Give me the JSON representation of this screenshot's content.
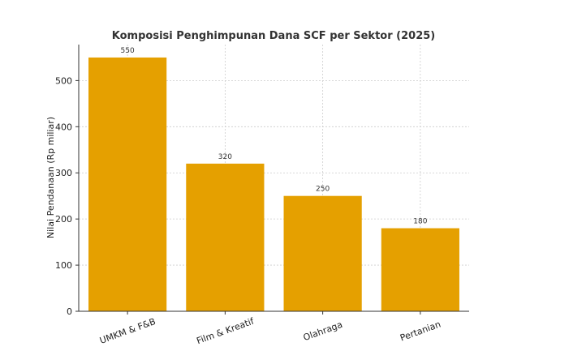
{
  "chart_data": {
    "type": "bar",
    "title": "Komposisi Penghimpunan Dana SCF per Sektor (2025)",
    "xlabel": "",
    "ylabel": "Nilai Pendanaan (Rp miliar)",
    "categories": [
      "UMKM & F&B",
      "Film & Kreatif",
      "Olahraga",
      "Pertanian"
    ],
    "values": [
      550,
      320,
      250,
      180
    ],
    "value_labels": [
      "550",
      "320",
      "250",
      "180"
    ],
    "yticks": [
      0,
      100,
      200,
      300,
      400,
      500
    ],
    "ylim": [
      0,
      578
    ],
    "grid": true,
    "bar_color": "#E5A000"
  }
}
